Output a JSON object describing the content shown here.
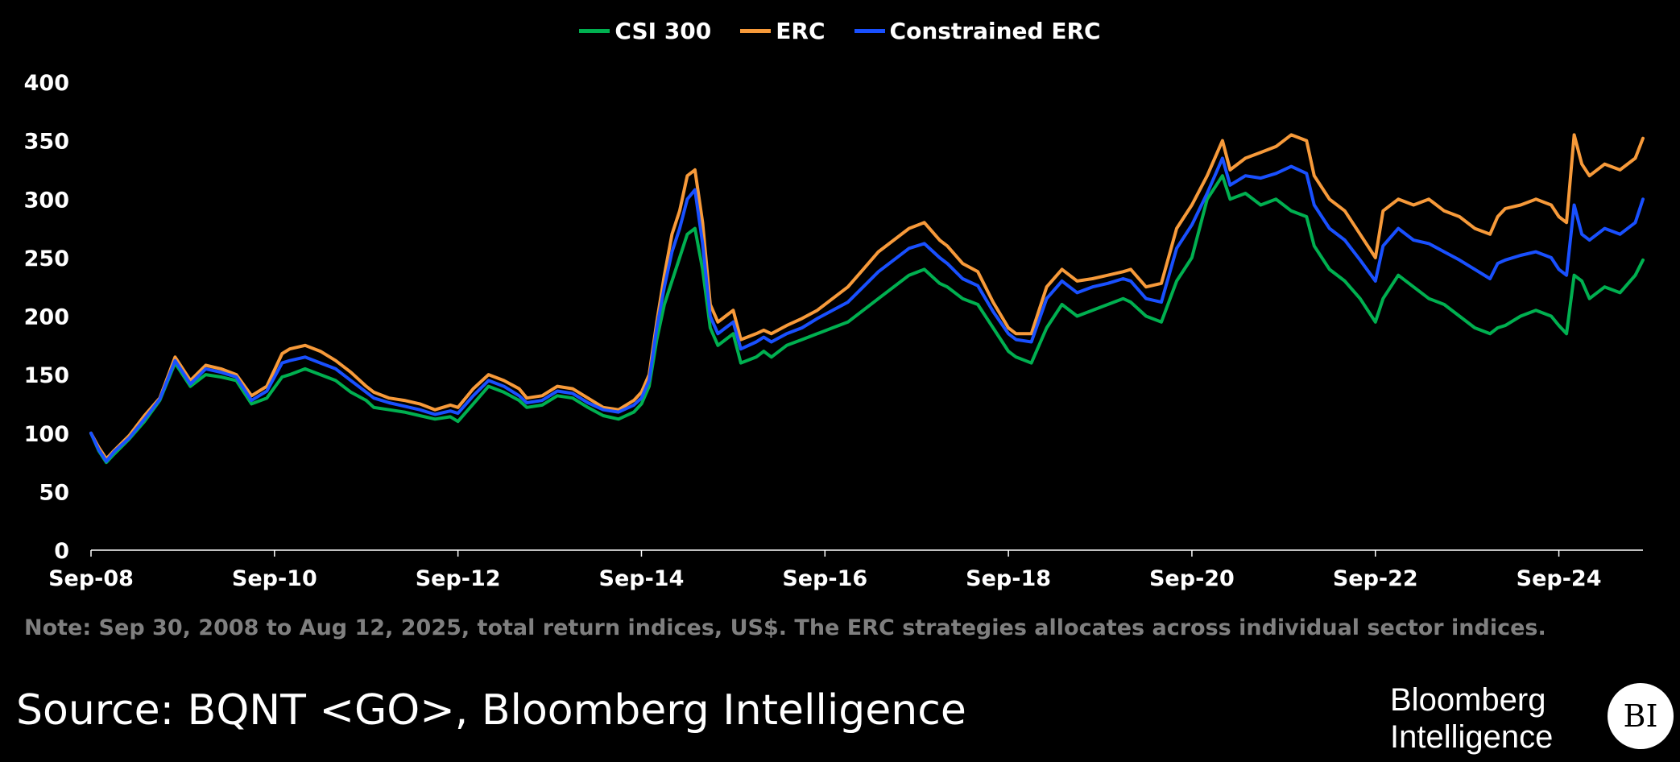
{
  "chart_data": {
    "type": "line",
    "title": "",
    "xlabel": "",
    "ylabel": "",
    "ylim": [
      0,
      400
    ],
    "yticks": [
      0,
      50,
      100,
      150,
      200,
      250,
      300,
      350,
      400
    ],
    "ytick_labels": [
      "0",
      "50",
      "100",
      "150",
      "200",
      "250",
      "300",
      "350",
      "400"
    ],
    "xlim": [
      "2008-09",
      "2025-08"
    ],
    "xticks": [
      "2008-09",
      "2010-09",
      "2012-09",
      "2014-09",
      "2016-09",
      "2018-09",
      "2020-09",
      "2022-09",
      "2024-09"
    ],
    "xtick_labels": [
      "Sep-08",
      "Sep-10",
      "Sep-12",
      "Sep-14",
      "Sep-16",
      "Sep-18",
      "Sep-20",
      "Sep-22",
      "Sep-24"
    ],
    "grid": false,
    "legend_position": "top-center",
    "x": [
      "2008-09",
      "2008-10",
      "2008-11",
      "2008-12",
      "2009-02",
      "2009-04",
      "2009-06",
      "2009-08",
      "2009-09",
      "2009-10",
      "2009-12",
      "2010-02",
      "2010-04",
      "2010-06",
      "2010-08",
      "2010-10",
      "2010-11",
      "2011-01",
      "2011-03",
      "2011-05",
      "2011-07",
      "2011-09",
      "2011-10",
      "2011-12",
      "2012-02",
      "2012-04",
      "2012-06",
      "2012-08",
      "2012-09",
      "2012-11",
      "2013-01",
      "2013-03",
      "2013-05",
      "2013-06",
      "2013-08",
      "2013-10",
      "2013-12",
      "2014-02",
      "2014-04",
      "2014-06",
      "2014-08",
      "2014-09",
      "2014-10",
      "2014-11",
      "2014-12",
      "2015-01",
      "2015-02",
      "2015-03",
      "2015-04",
      "2015-05",
      "2015-06",
      "2015-07",
      "2015-08",
      "2015-09",
      "2015-10",
      "2015-12",
      "2016-01",
      "2016-02",
      "2016-04",
      "2016-06",
      "2016-08",
      "2016-10",
      "2016-12",
      "2017-02",
      "2017-04",
      "2017-06",
      "2017-08",
      "2017-10",
      "2017-12",
      "2018-01",
      "2018-03",
      "2018-05",
      "2018-07",
      "2018-09",
      "2018-10",
      "2018-12",
      "2019-02",
      "2019-04",
      "2019-06",
      "2019-08",
      "2019-10",
      "2019-12",
      "2020-01",
      "2020-03",
      "2020-05",
      "2020-07",
      "2020-09",
      "2020-11",
      "2021-01",
      "2021-02",
      "2021-04",
      "2021-06",
      "2021-08",
      "2021-10",
      "2021-12",
      "2022-01",
      "2022-03",
      "2022-05",
      "2022-07",
      "2022-09",
      "2022-10",
      "2022-12",
      "2023-02",
      "2023-04",
      "2023-06",
      "2023-08",
      "2023-10",
      "2023-12",
      "2024-01",
      "2024-02",
      "2024-04",
      "2024-06",
      "2024-08",
      "2024-09",
      "2024-10",
      "2024-11",
      "2024-12",
      "2025-01",
      "2025-03",
      "2025-05",
      "2025-07",
      "2025-08"
    ],
    "series": [
      {
        "name": "CSI 300",
        "color": "#00b050",
        "values": [
          100,
          85,
          75,
          82,
          95,
          110,
          128,
          160,
          150,
          140,
          150,
          148,
          145,
          125,
          130,
          148,
          150,
          155,
          150,
          145,
          135,
          128,
          122,
          120,
          118,
          115,
          112,
          114,
          110,
          125,
          140,
          135,
          128,
          122,
          124,
          132,
          130,
          122,
          115,
          112,
          118,
          125,
          140,
          180,
          210,
          230,
          250,
          270,
          275,
          240,
          190,
          175,
          180,
          185,
          160,
          165,
          170,
          165,
          175,
          180,
          185,
          190,
          195,
          205,
          215,
          225,
          235,
          240,
          228,
          225,
          215,
          210,
          190,
          170,
          165,
          160,
          190,
          210,
          200,
          205,
          210,
          215,
          212,
          200,
          195,
          230,
          250,
          300,
          320,
          300,
          305,
          295,
          300,
          290,
          285,
          260,
          240,
          230,
          215,
          195,
          215,
          235,
          225,
          215,
          210,
          200,
          190,
          185,
          190,
          192,
          200,
          205,
          200,
          192,
          185,
          235,
          230,
          215,
          225,
          220,
          235,
          248
        ]
      },
      {
        "name": "ERC",
        "color": "#f79a3a",
        "values": [
          100,
          88,
          78,
          85,
          98,
          115,
          130,
          165,
          155,
          145,
          158,
          155,
          150,
          132,
          140,
          168,
          172,
          175,
          170,
          162,
          152,
          140,
          135,
          130,
          128,
          125,
          120,
          124,
          122,
          138,
          150,
          145,
          138,
          130,
          132,
          140,
          138,
          130,
          122,
          120,
          128,
          135,
          150,
          195,
          235,
          270,
          290,
          320,
          325,
          280,
          210,
          195,
          200,
          205,
          180,
          185,
          188,
          185,
          192,
          198,
          205,
          215,
          225,
          240,
          255,
          265,
          275,
          280,
          265,
          260,
          245,
          238,
          212,
          190,
          185,
          185,
          225,
          240,
          230,
          232,
          235,
          238,
          240,
          225,
          228,
          275,
          295,
          320,
          350,
          325,
          335,
          340,
          345,
          355,
          350,
          320,
          300,
          290,
          270,
          250,
          290,
          300,
          295,
          300,
          290,
          285,
          275,
          270,
          285,
          292,
          295,
          300,
          295,
          285,
          280,
          355,
          330,
          320,
          330,
          325,
          335,
          352
        ]
      },
      {
        "name": "Constrained ERC",
        "color": "#1950ff",
        "values": [
          100,
          86,
          76,
          84,
          96,
          112,
          129,
          162,
          152,
          142,
          155,
          152,
          148,
          128,
          136,
          160,
          162,
          165,
          160,
          155,
          145,
          135,
          130,
          126,
          123,
          120,
          116,
          119,
          117,
          132,
          145,
          140,
          132,
          126,
          128,
          136,
          134,
          126,
          120,
          118,
          124,
          130,
          145,
          190,
          225,
          255,
          275,
          300,
          308,
          262,
          200,
          185,
          190,
          195,
          172,
          178,
          182,
          178,
          185,
          190,
          198,
          205,
          212,
          225,
          238,
          248,
          258,
          262,
          250,
          245,
          232,
          226,
          204,
          185,
          180,
          178,
          215,
          230,
          220,
          225,
          228,
          232,
          230,
          215,
          212,
          258,
          278,
          305,
          335,
          312,
          320,
          318,
          322,
          328,
          322,
          295,
          275,
          265,
          248,
          230,
          260,
          275,
          265,
          262,
          255,
          248,
          240,
          232,
          245,
          248,
          252,
          255,
          250,
          240,
          235,
          295,
          270,
          265,
          275,
          270,
          280,
          300
        ]
      }
    ]
  },
  "legend": {
    "items": [
      {
        "label": "CSI 300",
        "color": "#00b050"
      },
      {
        "label": "ERC",
        "color": "#f79a3a"
      },
      {
        "label": "Constrained ERC",
        "color": "#1950ff"
      }
    ]
  },
  "footer": {
    "note": "Note: Sep 30, 2008 to Aug 12, 2025, total return indices, US$. The ERC strategies allocates across individual sector indices.",
    "source": "Source: BQNT <GO>, Bloomberg Intelligence",
    "brand_line1": "Bloomberg",
    "brand_line2": "Intelligence",
    "brand_logo": "BI"
  },
  "colors": {
    "background": "#000000",
    "axis": "#ffffff",
    "note": "#7f7f7f"
  }
}
